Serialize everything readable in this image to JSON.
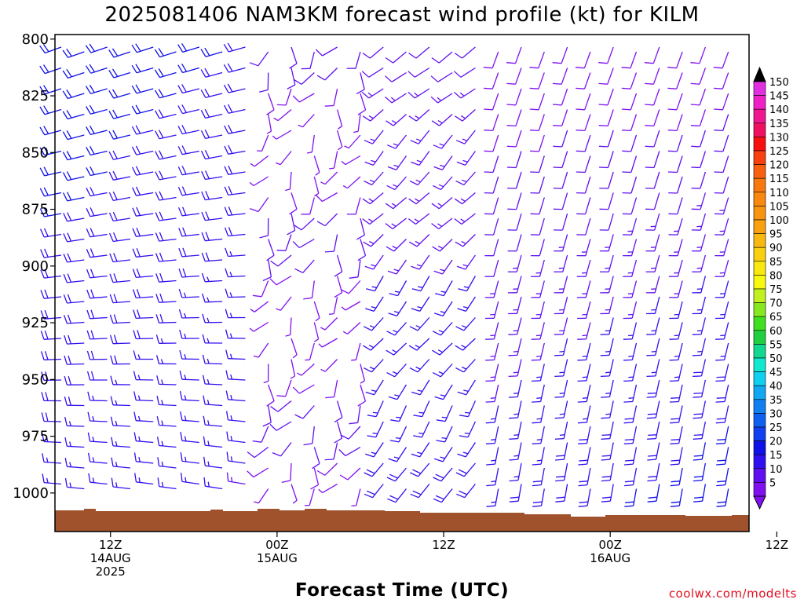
{
  "title": "2025081406 NAM3KM forecast wind profile (kt) for KILM",
  "xlabel": "Forecast Time (UTC)",
  "credit": "coolwx.com/modelts",
  "chart_data": {
    "type": "wind-barb time-height profile",
    "units": "kt",
    "y_axis": {
      "label": "",
      "scale": "pressure (inverted)",
      "ticks": [
        800,
        825,
        850,
        875,
        900,
        925,
        950,
        975,
        1000
      ],
      "range_hPa": [
        798,
        1017
      ]
    },
    "x_axis": {
      "label": "Forecast Time (UTC)",
      "range_hours_from_init": [
        2,
        52
      ],
      "ticks": [
        {
          "hour": 6,
          "lines": [
            "12Z",
            "14AUG",
            "2025"
          ]
        },
        {
          "hour": 18,
          "lines": [
            "00Z",
            "15AUG"
          ]
        },
        {
          "hour": 30,
          "lines": [
            "12Z"
          ]
        },
        {
          "hour": 42,
          "lines": [
            "00Z",
            "16AUG"
          ]
        },
        {
          "hour": 54,
          "lines": [
            "12Z"
          ]
        }
      ]
    },
    "colorbar": {
      "levels": [
        150,
        145,
        140,
        135,
        130,
        125,
        120,
        115,
        110,
        105,
        100,
        95,
        90,
        85,
        80,
        75,
        70,
        65,
        60,
        55,
        50,
        45,
        40,
        35,
        30,
        25,
        20,
        15,
        10,
        5
      ],
      "colors": [
        "#e030e0",
        "#f020c8",
        "#f01890",
        "#f01060",
        "#f81010",
        "#f84010",
        "#f86010",
        "#f87810",
        "#f88810",
        "#f89410",
        "#f8a010",
        "#f8b810",
        "#f8d010",
        "#f8e810",
        "#f8f810",
        "#c0f020",
        "#88e820",
        "#40e020",
        "#20d040",
        "#10d890",
        "#10e8d0",
        "#10d0f0",
        "#10a8f0",
        "#1080f0",
        "#1060f0",
        "#1040f0",
        "#1010e8",
        "#3010f0",
        "#6010f0",
        "#8010f0"
      ]
    },
    "surface": {
      "color": "#a0522d"
    },
    "wind_field": {
      "columns": 30,
      "rows": 22,
      "description": "Barb sampling: mostly westerly ~15-25 kt (blue) early, backing through a light-wind zone (purple) around 00Z 15AUG, then southwesterly/southerly 5-25 kt later."
    }
  }
}
